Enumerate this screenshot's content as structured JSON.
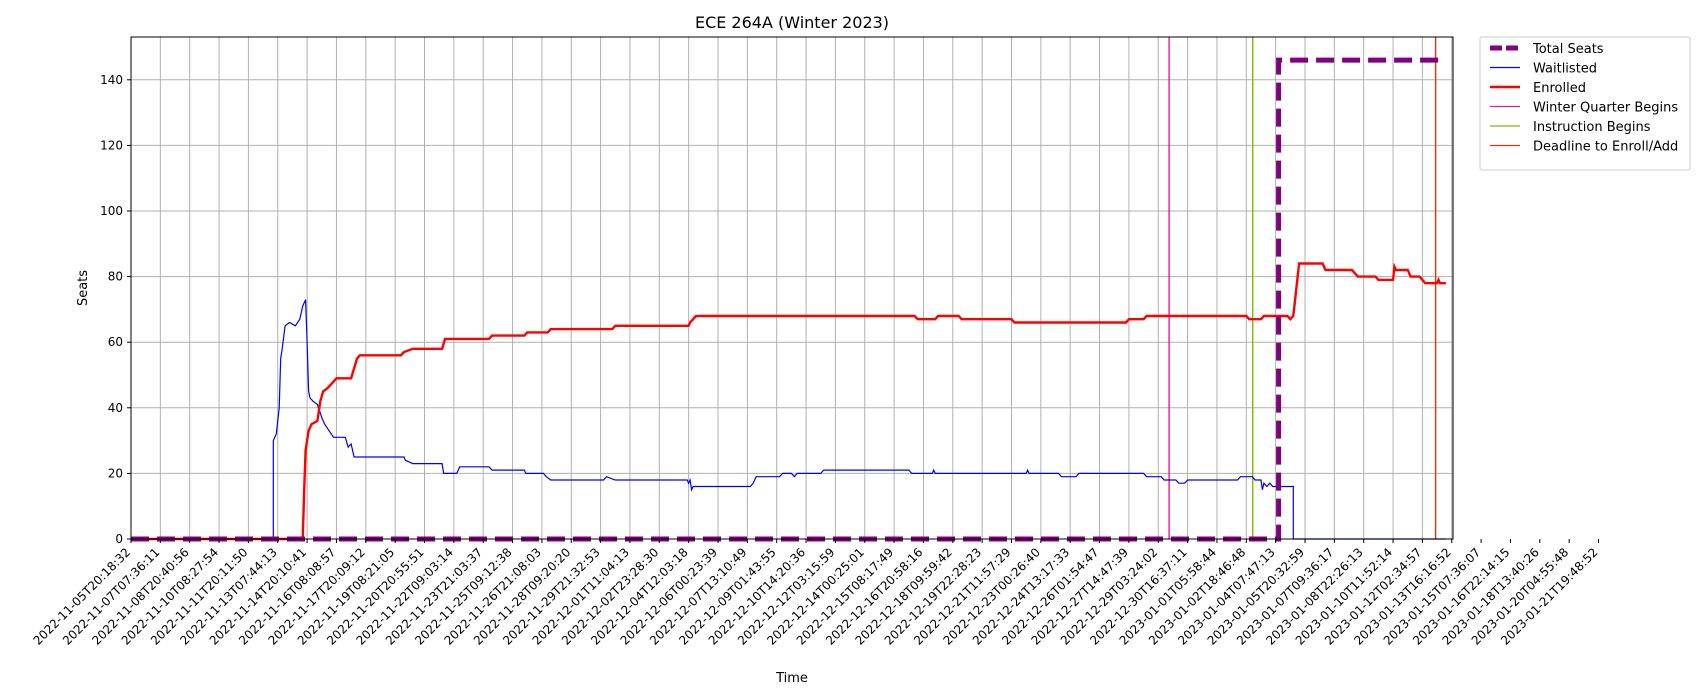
{
  "chart_data": {
    "type": "line",
    "title": "ECE 264A (Winter 2023)",
    "xlabel": "Time",
    "ylabel": "Seats",
    "ylim": [
      0,
      153
    ],
    "yticks": [
      0,
      20,
      40,
      60,
      80,
      100,
      120,
      140
    ],
    "grid": true,
    "legend_position": "outside-top-right",
    "x_tick_labels": [
      "2022-11-05T20:18:32",
      "2022-11-07T07:36:11",
      "2022-11-08T20:40:56",
      "2022-11-10T08:27:54",
      "2022-11-11T20:11:50",
      "2022-11-13T07:44:13",
      "2022-11-14T20:10:41",
      "2022-11-16T08:08:57",
      "2022-11-17T20:09:12",
      "2022-11-19T08:21:05",
      "2022-11-20T20:55:51",
      "2022-11-22T09:03:14",
      "2022-11-23T21:03:37",
      "2022-11-25T09:12:38",
      "2022-11-26T21:08:03",
      "2022-11-28T09:20:20",
      "2022-11-29T21:32:53",
      "2022-12-01T11:04:13",
      "2022-12-02T23:28:30",
      "2022-12-04T12:03:18",
      "2022-12-06T00:23:39",
      "2022-12-07T13:10:49",
      "2022-12-09T01:43:55",
      "2022-12-10T14:20:36",
      "2022-12-12T03:15:59",
      "2022-12-14T00:25:01",
      "2022-12-15T08:17:49",
      "2022-12-16T20:58:16",
      "2022-12-18T09:59:42",
      "2022-12-19T22:28:23",
      "2022-12-21T11:57:29",
      "2022-12-23T00:26:40",
      "2022-12-24T13:17:33",
      "2022-12-26T01:54:47",
      "2022-12-27T14:47:39",
      "2022-12-29T03:24:02",
      "2022-12-30T16:37:11",
      "2023-01-01T05:58:44",
      "2023-01-02T18:46:48",
      "2023-01-04T07:47:13",
      "2023-01-05T20:32:59",
      "2023-01-07T09:36:17",
      "2023-01-08T22:26:13",
      "2023-01-10T11:52:14",
      "2023-01-12T02:34:57",
      "2023-01-13T16:16:52",
      "2023-01-15T07:36:07",
      "2023-01-16T22:14:15",
      "2023-01-18T13:40:26",
      "2023-01-20T04:55:48",
      "2023-01-21T19:48:52"
    ],
    "series": [
      {
        "name": "Total Seats",
        "color": "#800080",
        "style": "dashed-thick",
        "points": [
          [
            0,
            0
          ],
          [
            39.1,
            0
          ],
          [
            39.1,
            146
          ],
          [
            44.8,
            146
          ],
          [
            44.8,
            146
          ]
        ]
      },
      {
        "name": "Waitlisted",
        "color": "#0000ff",
        "style": "solid-thin",
        "points": [
          [
            0,
            0
          ],
          [
            4.85,
            0
          ],
          [
            4.85,
            30
          ],
          [
            4.95,
            32
          ],
          [
            5.05,
            40
          ],
          [
            5.1,
            55
          ],
          [
            5.15,
            58
          ],
          [
            5.25,
            65
          ],
          [
            5.4,
            66
          ],
          [
            5.6,
            65
          ],
          [
            5.75,
            67
          ],
          [
            5.85,
            71
          ],
          [
            5.95,
            73
          ],
          [
            6.0,
            60
          ],
          [
            6.05,
            45
          ],
          [
            6.1,
            43
          ],
          [
            6.2,
            42
          ],
          [
            6.35,
            41
          ],
          [
            6.5,
            37
          ],
          [
            6.6,
            35
          ],
          [
            6.75,
            33
          ],
          [
            6.9,
            31
          ],
          [
            7.3,
            31
          ],
          [
            7.4,
            28
          ],
          [
            7.5,
            29
          ],
          [
            7.6,
            25
          ],
          [
            9.3,
            25
          ],
          [
            9.35,
            24
          ],
          [
            9.6,
            23
          ],
          [
            10.6,
            23
          ],
          [
            10.65,
            20
          ],
          [
            11.1,
            20
          ],
          [
            11.2,
            22
          ],
          [
            12.2,
            22
          ],
          [
            12.3,
            21
          ],
          [
            13.4,
            21
          ],
          [
            13.45,
            20
          ],
          [
            14.05,
            20
          ],
          [
            14.15,
            19
          ],
          [
            14.3,
            18
          ],
          [
            16.1,
            18
          ],
          [
            16.2,
            19
          ],
          [
            16.5,
            18
          ],
          [
            18.95,
            18
          ],
          [
            19.0,
            17
          ],
          [
            19.05,
            18
          ],
          [
            19.1,
            15
          ],
          [
            19.15,
            16
          ],
          [
            21.1,
            16
          ],
          [
            21.2,
            17
          ],
          [
            21.3,
            19
          ],
          [
            22.1,
            19
          ],
          [
            22.2,
            20
          ],
          [
            22.5,
            20
          ],
          [
            22.6,
            19
          ],
          [
            22.7,
            20
          ],
          [
            23.5,
            20
          ],
          [
            23.6,
            21
          ],
          [
            26.5,
            21
          ],
          [
            26.6,
            20
          ],
          [
            27.3,
            20
          ],
          [
            27.35,
            21
          ],
          [
            27.4,
            20
          ],
          [
            30.5,
            20
          ],
          [
            30.55,
            21
          ],
          [
            30.6,
            20
          ],
          [
            31.6,
            20
          ],
          [
            31.7,
            19
          ],
          [
            32.2,
            19
          ],
          [
            32.3,
            20
          ],
          [
            34.5,
            20
          ],
          [
            34.6,
            19
          ],
          [
            35.1,
            19
          ],
          [
            35.2,
            18
          ],
          [
            35.6,
            18
          ],
          [
            35.7,
            17
          ],
          [
            35.9,
            17
          ],
          [
            36.0,
            18
          ],
          [
            37.7,
            18
          ],
          [
            37.8,
            19
          ],
          [
            38.2,
            19
          ],
          [
            38.3,
            18
          ],
          [
            38.5,
            18
          ],
          [
            38.55,
            15
          ],
          [
            38.6,
            17
          ],
          [
            38.7,
            16
          ],
          [
            38.8,
            17
          ],
          [
            38.9,
            16
          ],
          [
            39.6,
            16
          ],
          [
            39.6,
            0
          ],
          [
            44.8,
            0
          ]
        ]
      },
      {
        "name": "Enrolled",
        "color": "#ff0000",
        "style": "solid-thick",
        "points": [
          [
            0,
            0
          ],
          [
            5.85,
            0
          ],
          [
            5.9,
            15
          ],
          [
            5.95,
            27
          ],
          [
            6.0,
            30
          ],
          [
            6.05,
            33
          ],
          [
            6.15,
            35
          ],
          [
            6.35,
            36
          ],
          [
            6.45,
            42
          ],
          [
            6.55,
            45
          ],
          [
            6.7,
            46
          ],
          [
            6.8,
            47
          ],
          [
            6.9,
            48
          ],
          [
            7.0,
            49
          ],
          [
            7.5,
            49
          ],
          [
            7.6,
            52
          ],
          [
            7.7,
            55
          ],
          [
            7.8,
            56
          ],
          [
            9.2,
            56
          ],
          [
            9.3,
            57
          ],
          [
            9.6,
            58
          ],
          [
            10.6,
            58
          ],
          [
            10.7,
            61
          ],
          [
            12.2,
            61
          ],
          [
            12.3,
            62
          ],
          [
            13.4,
            62
          ],
          [
            13.5,
            63
          ],
          [
            14.2,
            63
          ],
          [
            14.3,
            64
          ],
          [
            16.4,
            64
          ],
          [
            16.5,
            65
          ],
          [
            19.0,
            65
          ],
          [
            19.05,
            66
          ],
          [
            19.15,
            67
          ],
          [
            19.25,
            68
          ],
          [
            26.7,
            68
          ],
          [
            26.8,
            67
          ],
          [
            27.4,
            67
          ],
          [
            27.5,
            68
          ],
          [
            28.2,
            68
          ],
          [
            28.3,
            67
          ],
          [
            30.0,
            67
          ],
          [
            30.1,
            66
          ],
          [
            33.9,
            66
          ],
          [
            34.0,
            67
          ],
          [
            34.5,
            67
          ],
          [
            34.6,
            68
          ],
          [
            38.0,
            68
          ],
          [
            38.1,
            67
          ],
          [
            38.5,
            67
          ],
          [
            38.6,
            68
          ],
          [
            39.4,
            68
          ],
          [
            39.5,
            67
          ],
          [
            39.6,
            68
          ],
          [
            39.8,
            84
          ],
          [
            40.6,
            84
          ],
          [
            40.7,
            82
          ],
          [
            41.6,
            82
          ],
          [
            41.7,
            81
          ],
          [
            41.8,
            80
          ],
          [
            42.4,
            80
          ],
          [
            42.5,
            79
          ],
          [
            43.0,
            79
          ],
          [
            43.05,
            83
          ],
          [
            43.1,
            82
          ],
          [
            43.5,
            82
          ],
          [
            43.6,
            80
          ],
          [
            43.9,
            80
          ],
          [
            44.0,
            79
          ],
          [
            44.1,
            78
          ],
          [
            44.5,
            78
          ],
          [
            44.55,
            79
          ],
          [
            44.6,
            78
          ],
          [
            44.8,
            78
          ]
        ]
      }
    ],
    "vlines": [
      {
        "name": "Winter Quarter Begins",
        "color": "#e6179e",
        "x": 35.37
      },
      {
        "name": "Instruction Begins",
        "color": "#7fb800",
        "x": 38.22
      },
      {
        "name": "Deadline to Enroll/Add",
        "color": "#d3380a",
        "x": 44.45
      }
    ]
  },
  "legend": [
    {
      "label": "Total Seats",
      "color": "#800080",
      "style": "dashed-thick"
    },
    {
      "label": "Waitlisted",
      "color": "#0000ff",
      "style": "solid-thin"
    },
    {
      "label": "Enrolled",
      "color": "#ff0000",
      "style": "solid-thick"
    },
    {
      "label": "Winter Quarter Begins",
      "color": "#e6179e",
      "style": "solid-thin"
    },
    {
      "label": "Instruction Begins",
      "color": "#7fb800",
      "style": "solid-thin"
    },
    {
      "label": "Deadline to Enroll/Add",
      "color": "#d3380a",
      "style": "solid-thin"
    }
  ]
}
